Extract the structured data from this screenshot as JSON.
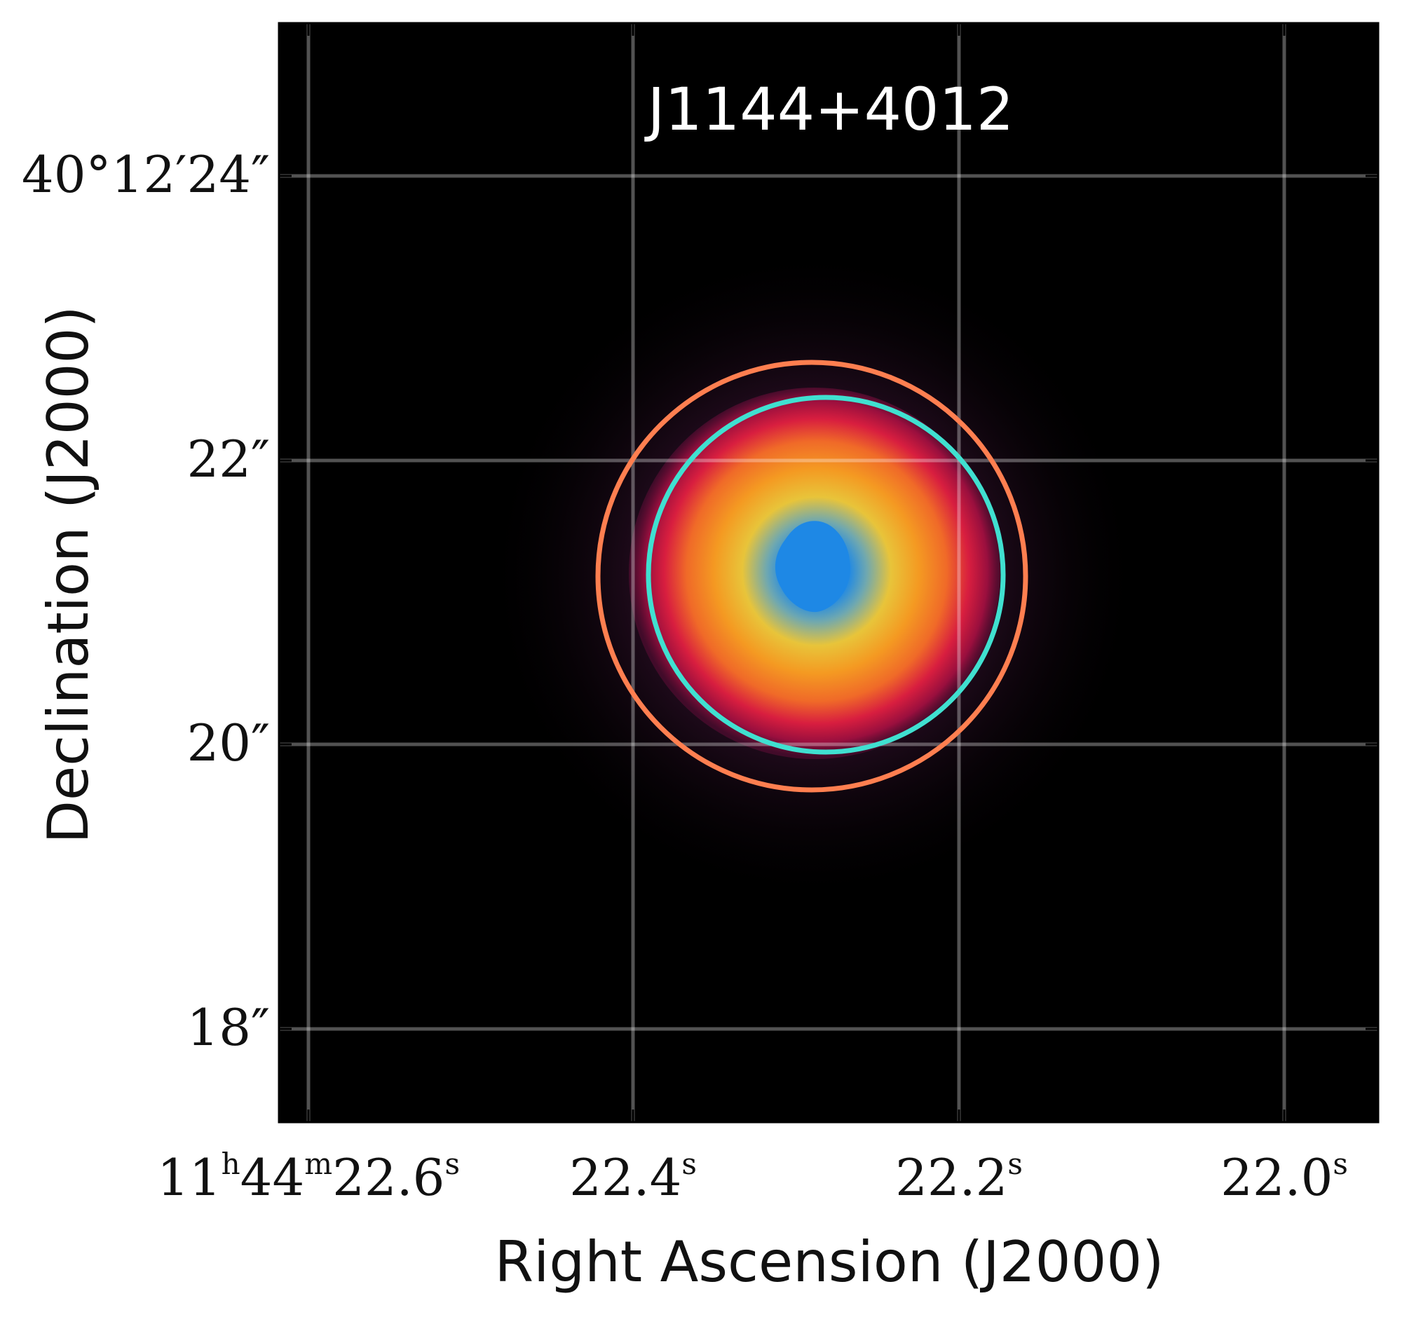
{
  "title": "J1144+4012",
  "axes": {
    "xlabel": "Right Ascension (J2000)",
    "ylabel": "Declination (J2000)",
    "x_ticks": [
      {
        "prefix": "11",
        "h": "h",
        "mid": "44",
        "m": "m",
        "main": "22.6",
        "s": "s"
      },
      {
        "prefix": "",
        "h": "",
        "mid": "",
        "m": "",
        "main": "22.4",
        "s": "s"
      },
      {
        "prefix": "",
        "h": "",
        "mid": "",
        "m": "",
        "main": "22.2",
        "s": "s"
      },
      {
        "prefix": "",
        "h": "",
        "mid": "",
        "m": "",
        "main": "22.0",
        "s": "s"
      }
    ],
    "y_ticks": [
      "40°12′24″",
      "22″",
      "20″",
      "18″"
    ]
  },
  "image": {
    "background_color": "#000000",
    "colormap": [
      "#000000",
      "#2a0a22",
      "#8a0f3c",
      "#e0203f",
      "#f47a1f",
      "#e8c43a",
      "#1e88e5"
    ]
  },
  "overlays": [
    {
      "name": "outer-aperture",
      "color": "#ff7f50"
    },
    {
      "name": "inner-aperture",
      "color": "#40e0d0"
    }
  ],
  "grid": {
    "on": true,
    "color": "#ffffff"
  }
}
